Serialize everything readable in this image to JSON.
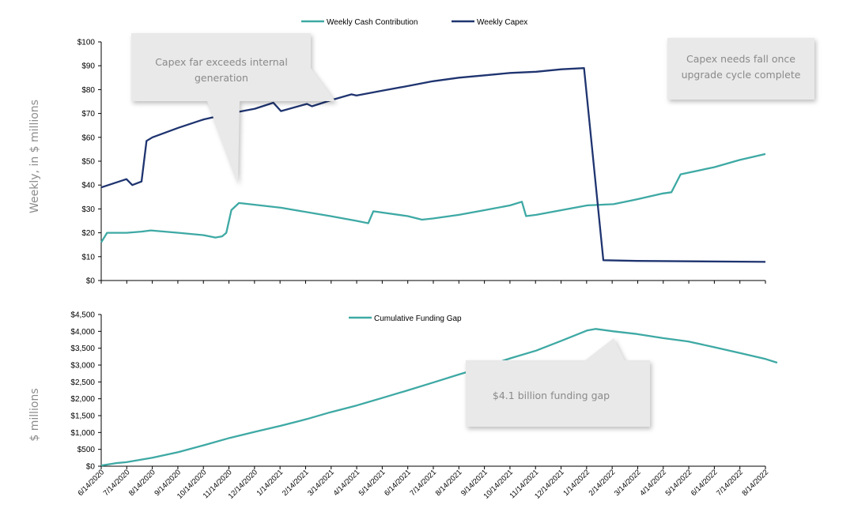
{
  "colors": {
    "cash": "#3ea9a4",
    "capex": "#1f3470",
    "gap": "#3ea9a4",
    "callout_fill": "#e9e9e9",
    "axis": "#000000"
  },
  "chart_data": [
    {
      "type": "line",
      "ylabel": "Weekly, in $ millions",
      "ylim": [
        0,
        100
      ],
      "y_ticks": [
        "$0",
        "$10",
        "$20",
        "$30",
        "$40",
        "$50",
        "$60",
        "$70",
        "$80",
        "$90",
        "$100"
      ],
      "x_range": [
        "2020-06-14",
        "2022-08-14"
      ],
      "legend_position": "top-center",
      "series": [
        {
          "name": "Weekly Cash Contribution",
          "points": [
            [
              "2020-06-14",
              16
            ],
            [
              "2020-06-21",
              20
            ],
            [
              "2020-07-14",
              20
            ],
            [
              "2020-08-01",
              20.5
            ],
            [
              "2020-08-12",
              21
            ],
            [
              "2020-09-14",
              20
            ],
            [
              "2020-10-14",
              19
            ],
            [
              "2020-10-28",
              18
            ],
            [
              "2020-11-05",
              18.5
            ],
            [
              "2020-11-10",
              20
            ],
            [
              "2020-11-16",
              29.5
            ],
            [
              "2020-11-25",
              32.5
            ],
            [
              "2021-01-14",
              30.5
            ],
            [
              "2021-03-14",
              27
            ],
            [
              "2021-04-14",
              25
            ],
            [
              "2021-04-28",
              24
            ],
            [
              "2021-05-04",
              29
            ],
            [
              "2021-06-14",
              27
            ],
            [
              "2021-07-01",
              25.5
            ],
            [
              "2021-07-14",
              26
            ],
            [
              "2021-08-14",
              27.5
            ],
            [
              "2021-09-14",
              29.5
            ],
            [
              "2021-10-14",
              31.5
            ],
            [
              "2021-10-28",
              33
            ],
            [
              "2021-11-02",
              27
            ],
            [
              "2021-11-14",
              27.5
            ],
            [
              "2022-01-14",
              31.5
            ],
            [
              "2022-02-14",
              32
            ],
            [
              "2022-03-14",
              34
            ],
            [
              "2022-04-14",
              36.5
            ],
            [
              "2022-04-24",
              37
            ],
            [
              "2022-05-05",
              44.5
            ],
            [
              "2022-06-14",
              47.5
            ],
            [
              "2022-07-14",
              50.5
            ],
            [
              "2022-08-14",
              53
            ]
          ]
        },
        {
          "name": "Weekly Capex",
          "points": [
            [
              "2020-06-14",
              39
            ],
            [
              "2020-07-14",
              42.5
            ],
            [
              "2020-07-21",
              40
            ],
            [
              "2020-08-01",
              41.5
            ],
            [
              "2020-08-07",
              58.5
            ],
            [
              "2020-08-14",
              60
            ],
            [
              "2020-09-14",
              64
            ],
            [
              "2020-10-14",
              67.5
            ],
            [
              "2020-11-14",
              70
            ],
            [
              "2020-12-14",
              72
            ],
            [
              "2021-01-05",
              74.5
            ],
            [
              "2021-01-14",
              71
            ],
            [
              "2021-02-14",
              74
            ],
            [
              "2021-02-20",
              73
            ],
            [
              "2021-03-14",
              75.5
            ],
            [
              "2021-04-08",
              78
            ],
            [
              "2021-04-14",
              77.5
            ],
            [
              "2021-05-14",
              79.5
            ],
            [
              "2021-06-14",
              81.5
            ],
            [
              "2021-07-14",
              83.5
            ],
            [
              "2021-08-14",
              85
            ],
            [
              "2021-09-14",
              86
            ],
            [
              "2021-10-14",
              87
            ],
            [
              "2021-11-14",
              87.5
            ],
            [
              "2021-12-14",
              88.5
            ],
            [
              "2022-01-10",
              89
            ],
            [
              "2022-02-02",
              8.5
            ],
            [
              "2022-03-14",
              8.2
            ],
            [
              "2022-08-14",
              7.8
            ]
          ]
        }
      ],
      "annotations": [
        {
          "text_lines": [
            "Capex far exceeds internal",
            "generation"
          ]
        },
        {
          "text_lines": [
            "Capex needs fall once",
            "upgrade cycle complete"
          ]
        }
      ]
    },
    {
      "type": "line",
      "ylabel": "$ millions",
      "ylim": [
        0,
        4500
      ],
      "y_ticks": [
        "$0",
        "$500",
        "$1,000",
        "$1,500",
        "$2,000",
        "$2,500",
        "$3,000",
        "$3,500",
        "$4,000",
        "$4,500"
      ],
      "x_ticks": [
        "6/14/2020",
        "7/14/2020",
        "8/14/2020",
        "9/14/2020",
        "10/14/2020",
        "11/14/2020",
        "12/14/2020",
        "1/14/2021",
        "2/14/2021",
        "3/14/2021",
        "4/14/2021",
        "5/14/2021",
        "6/14/2021",
        "7/14/2021",
        "8/14/2021",
        "9/14/2021",
        "10/14/2021",
        "11/14/2021",
        "12/14/2021",
        "1/14/2022",
        "2/14/2022",
        "3/14/2022",
        "4/14/2022",
        "5/14/2022",
        "6/14/2022",
        "7/14/2022",
        "8/14/2022"
      ],
      "legend_position": "top-center",
      "series": [
        {
          "name": "Cumulative Funding Gap",
          "points": [
            [
              "2020-06-14",
              20
            ],
            [
              "2020-07-01",
              90
            ],
            [
              "2020-07-14",
              120
            ],
            [
              "2020-08-14",
              250
            ],
            [
              "2020-09-14",
              420
            ],
            [
              "2020-10-14",
              620
            ],
            [
              "2020-11-14",
              840
            ],
            [
              "2020-12-14",
              1020
            ],
            [
              "2021-01-14",
              1200
            ],
            [
              "2021-02-14",
              1400
            ],
            [
              "2021-03-14",
              1600
            ],
            [
              "2021-04-14",
              1800
            ],
            [
              "2021-05-14",
              2020
            ],
            [
              "2021-06-14",
              2250
            ],
            [
              "2021-07-14",
              2480
            ],
            [
              "2021-08-14",
              2720
            ],
            [
              "2021-09-14",
              2950
            ],
            [
              "2021-10-14",
              3200
            ],
            [
              "2021-11-14",
              3430
            ],
            [
              "2021-12-14",
              3720
            ],
            [
              "2022-01-14",
              4030
            ],
            [
              "2022-01-24",
              4070
            ],
            [
              "2022-02-14",
              4000
            ],
            [
              "2022-03-14",
              3920
            ],
            [
              "2022-04-14",
              3800
            ],
            [
              "2022-05-14",
              3700
            ],
            [
              "2022-06-14",
              3530
            ],
            [
              "2022-07-14",
              3360
            ],
            [
              "2022-08-14",
              3180
            ],
            [
              "2022-08-28",
              3070
            ]
          ]
        }
      ],
      "annotations": [
        {
          "text_lines": [
            "$4.1 billion funding gap"
          ]
        }
      ]
    }
  ]
}
